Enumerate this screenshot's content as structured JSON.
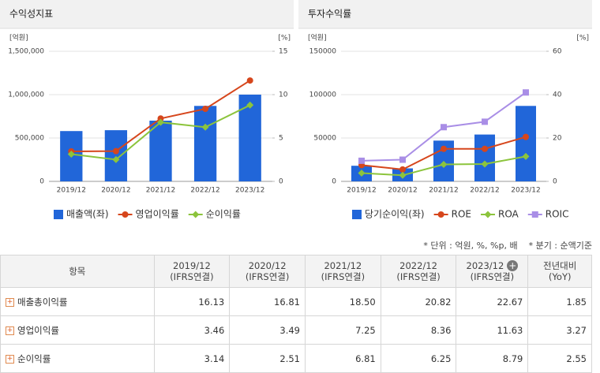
{
  "chart_data": [
    {
      "type": "combo",
      "title": "수익성지표",
      "y_unit": "[억원]",
      "y2_unit": "[%]",
      "categories": [
        "2019/12",
        "2020/12",
        "2021/12",
        "2022/12",
        "2023/12"
      ],
      "ylim": [
        0,
        1500000
      ],
      "yticks": [
        0,
        {
          "value": 500000,
          "label": "500,000"
        },
        {
          "value": 1000000,
          "label": "1,000,000"
        },
        {
          "value": 1500000,
          "label": "1,500,000"
        }
      ],
      "y2lim": [
        0,
        15
      ],
      "y2ticks": [
        0,
        5,
        10,
        15
      ],
      "grid": true,
      "series": [
        {
          "name": "매출액(좌)",
          "kind": "bar",
          "color": "#2166d9",
          "values": [
            580000,
            590000,
            700000,
            870000,
            1000000
          ]
        },
        {
          "name": "영업이익률",
          "kind": "line",
          "marker": "circle",
          "axis": "y2",
          "color": "#d6461c",
          "values": [
            3.46,
            3.49,
            7.25,
            8.36,
            11.63
          ]
        },
        {
          "name": "순이익률",
          "kind": "line",
          "marker": "diamond",
          "axis": "y2",
          "color": "#8cc43c",
          "values": [
            3.14,
            2.51,
            6.81,
            6.25,
            8.79
          ]
        }
      ]
    },
    {
      "type": "combo",
      "title": "투자수익률",
      "y_unit": "[억원]",
      "y2_unit": "[%]",
      "categories": [
        "2019/12",
        "2020/12",
        "2021/12",
        "2022/12",
        "2023/12"
      ],
      "ylim": [
        0,
        150000
      ],
      "yticks": [
        0,
        50000,
        100000,
        150000
      ],
      "y2lim": [
        0,
        60
      ],
      "y2ticks": [
        0,
        20,
        40,
        60
      ],
      "grid": true,
      "series": [
        {
          "name": "당기순이익(좌)",
          "kind": "bar",
          "color": "#2166d9",
          "values": [
            18000,
            15000,
            47000,
            54000,
            87000
          ]
        },
        {
          "name": "ROE",
          "kind": "line",
          "marker": "circle",
          "axis": "y2",
          "color": "#d6461c",
          "values": [
            7.5,
            5.5,
            15,
            15,
            20.5
          ]
        },
        {
          "name": "ROA",
          "kind": "line",
          "marker": "diamond",
          "axis": "y2",
          "color": "#8cc43c",
          "values": [
            3.8,
            2.8,
            7.8,
            8,
            11.5
          ]
        },
        {
          "name": "ROIC",
          "kind": "line",
          "marker": "square",
          "axis": "y2",
          "color": "#a98ee6",
          "values": [
            9.5,
            10,
            25,
            27.5,
            41
          ]
        }
      ]
    }
  ],
  "notes": [
    "* 단위 : 억원, %, %p, 배",
    "* 분기 : 순액기준"
  ],
  "table": {
    "columns": [
      {
        "label": "항목"
      },
      {
        "label": "2019/12",
        "sub": "(IFRS연결)"
      },
      {
        "label": "2020/12",
        "sub": "(IFRS연결)"
      },
      {
        "label": "2021/12",
        "sub": "(IFRS연결)"
      },
      {
        "label": "2022/12",
        "sub": "(IFRS연결)"
      },
      {
        "label": "2023/12",
        "sub": "(IFRS연결)"
      },
      {
        "label": "전년대비",
        "sub": "(YoY)"
      }
    ],
    "rows": [
      [
        "매출총이익률",
        "16.13",
        "16.81",
        "18.50",
        "20.82",
        "22.67",
        "1.85"
      ],
      [
        "영업이익률",
        "3.46",
        "3.49",
        "7.25",
        "8.36",
        "11.63",
        "3.27"
      ],
      [
        "순이익률",
        "3.14",
        "2.51",
        "6.81",
        "6.25",
        "8.79",
        "2.55"
      ]
    ]
  }
}
